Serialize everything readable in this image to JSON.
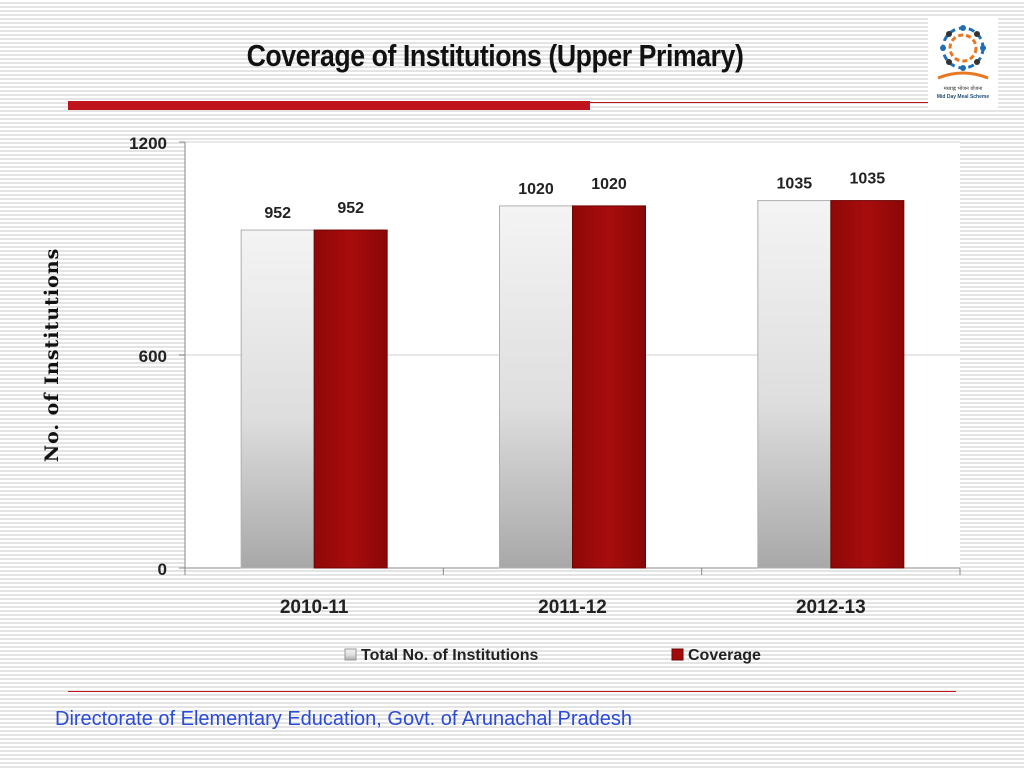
{
  "slide": {
    "title": "Coverage of Institutions (Upper Primary)",
    "footer": "Directorate of Elementary Education, Govt. of Arunachal Pradesh",
    "accent_color": "#c0141c"
  },
  "logo": {
    "hindi_text": "मध्याह्न भोजन योजना",
    "english_text": "Mid Day Meal Scheme",
    "icon": "mid-day-meal-logo"
  },
  "chart_data": {
    "type": "bar",
    "title": "",
    "xlabel": "",
    "ylabel": "No. of Institutions",
    "ylim": [
      0,
      1200
    ],
    "yticks": [
      0,
      600,
      1200
    ],
    "grid": true,
    "legend_position": "bottom",
    "categories": [
      "2010-11",
      "2011-12",
      "2012-13"
    ],
    "series": [
      {
        "name": "Total No. of Institutions",
        "values": [
          952,
          1020,
          1035
        ],
        "color": "#e8e8e8"
      },
      {
        "name": "Coverage",
        "values": [
          952,
          1020,
          1035
        ],
        "color": "#a30a0a"
      }
    ]
  }
}
